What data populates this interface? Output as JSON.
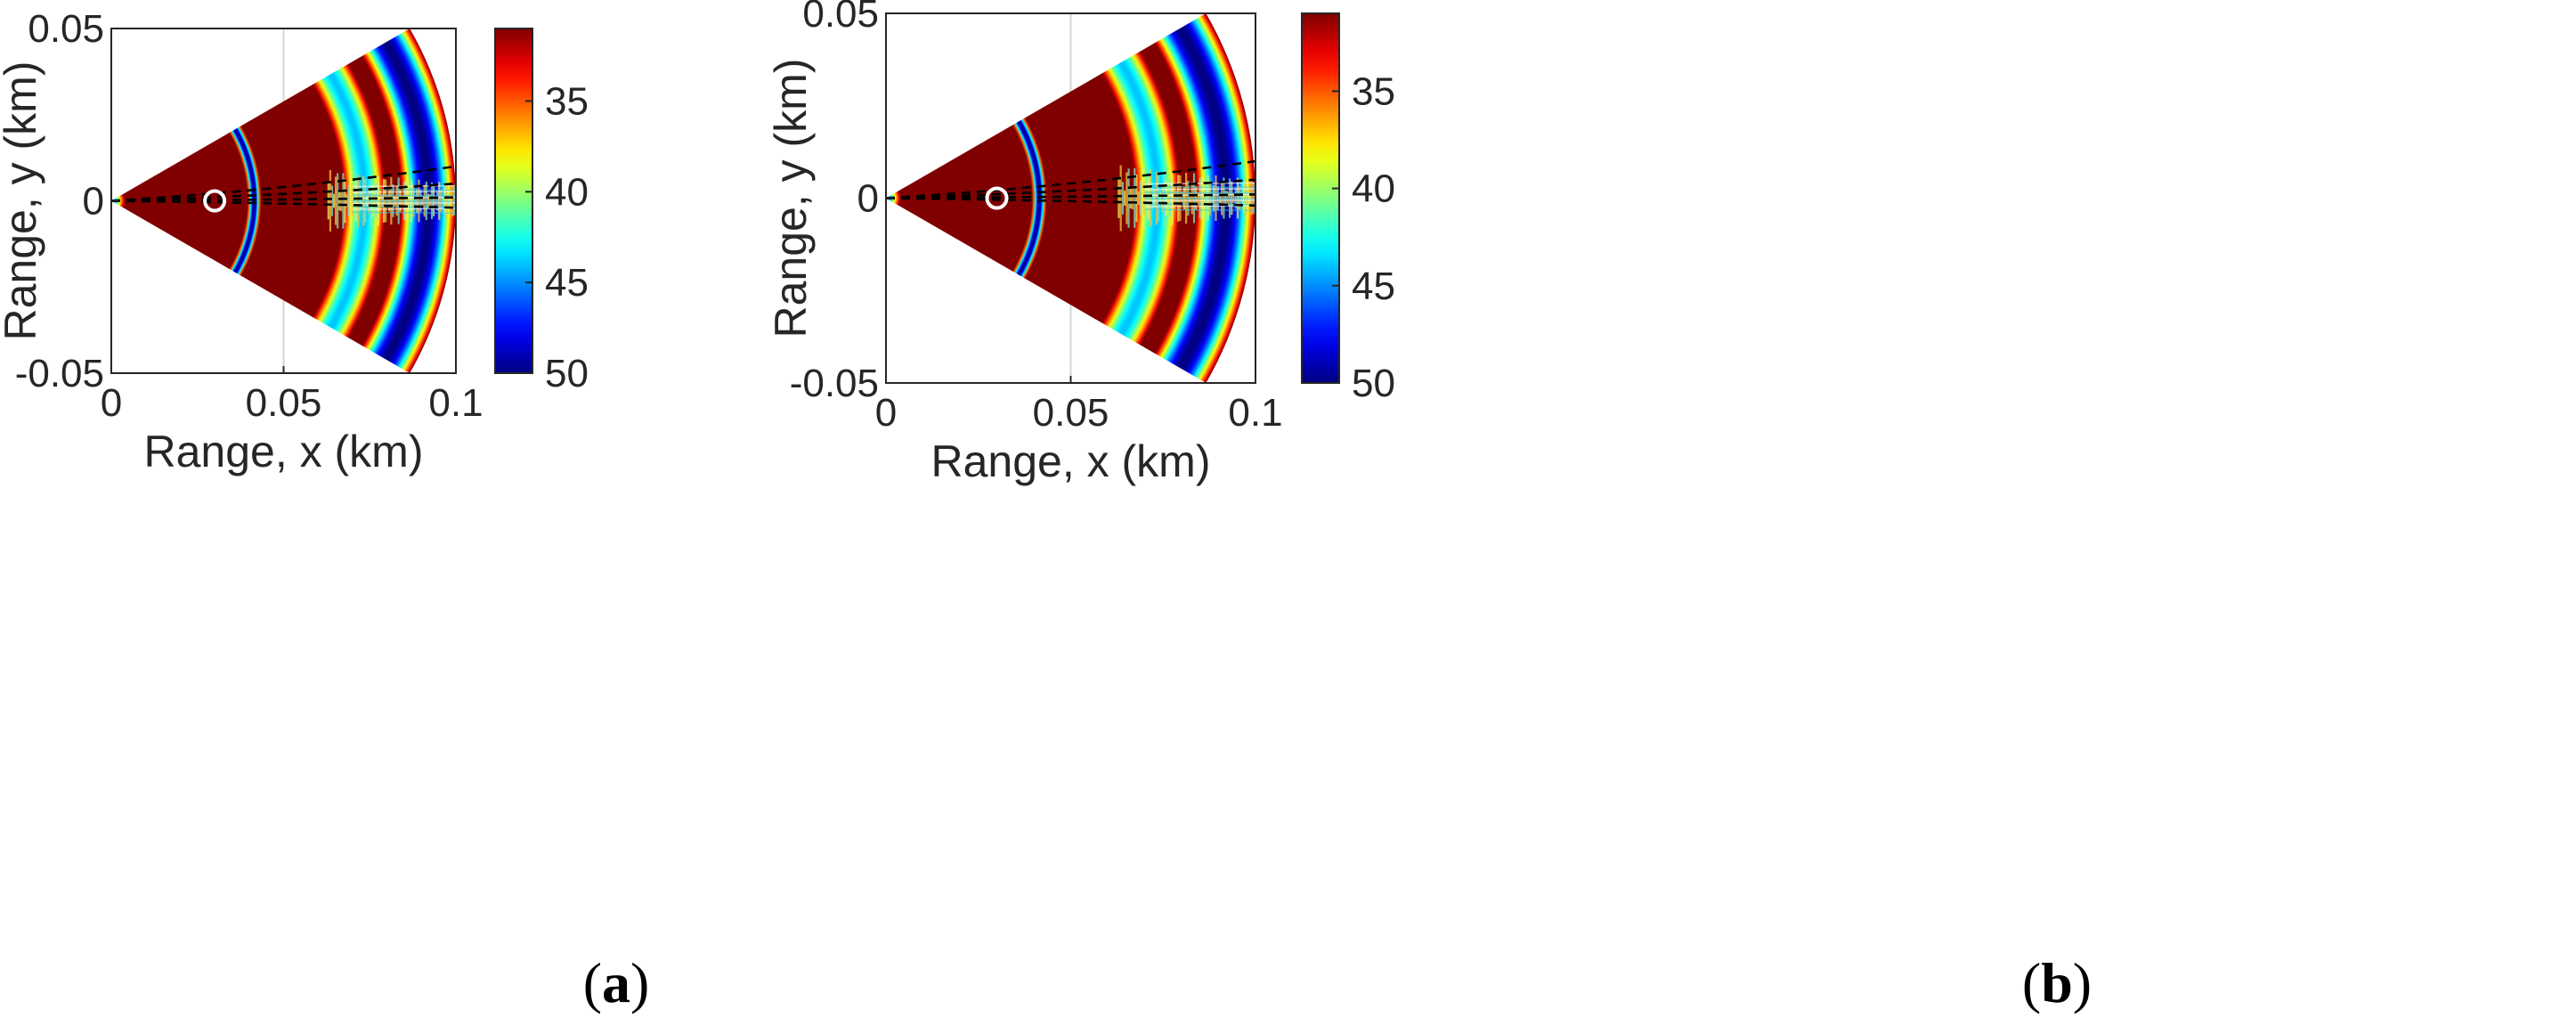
{
  "figure": {
    "panels": [
      {
        "label_open": "(",
        "label_letter": "a",
        "label_close": ")"
      },
      {
        "label_open": "(",
        "label_letter": "b",
        "label_close": ")"
      }
    ]
  },
  "chart_data": [
    {
      "type": "heatmap",
      "title": "",
      "xlabel": "Range, x (km)",
      "ylabel": "Range, y (km)",
      "xlim": [
        0,
        0.1
      ],
      "ylim": [
        -0.05,
        0.05
      ],
      "xticks": [
        "0",
        "0.05",
        "0.1"
      ],
      "yticks": [
        "0.05",
        "0",
        "-0.05"
      ],
      "xtick_values": [
        0,
        0.05,
        0.1
      ],
      "ytick_values": [
        0.05,
        0,
        -0.05
      ],
      "grid": true,
      "sector_half_angle_deg": 30,
      "max_range_km": 0.1,
      "colorbar": {
        "ticks": [
          "35",
          "40",
          "45",
          "50"
        ],
        "tick_values": [
          35,
          40,
          45,
          50
        ],
        "range": [
          31,
          50
        ],
        "reversed": true,
        "colormap": "jet"
      },
      "rings_km": [
        {
          "center": 0.0415,
          "width": 0.0035,
          "value": 50
        },
        {
          "center": 0.0735,
          "width": 0.012,
          "value": 44
        },
        {
          "center": 0.092,
          "width": 0.016,
          "value": 50
        }
      ],
      "background_value": 31,
      "source_marker": {
        "x": 0.03,
        "y": 0.0
      },
      "dashed_paths_end_y": [
        0.01,
        0.005,
        0.001,
        -0.002
      ],
      "colors": {
        "dashed": "#000000",
        "marker": "#ffffff"
      }
    },
    {
      "type": "heatmap",
      "title": "",
      "xlabel": "Range, x (km)",
      "ylabel": "Range, y (km)",
      "xlim": [
        0,
        0.1
      ],
      "ylim": [
        -0.05,
        0.05
      ],
      "xticks": [
        "0",
        "0.05",
        "0.1"
      ],
      "yticks": [
        "0.05",
        "0",
        "-0.05"
      ],
      "xtick_values": [
        0,
        0.05,
        0.1
      ],
      "ytick_values": [
        0.05,
        0,
        -0.05
      ],
      "grid": true,
      "sector_half_angle_deg": 30,
      "max_range_km": 0.1,
      "colorbar": {
        "ticks": [
          "35",
          "40",
          "45",
          "50"
        ],
        "tick_values": [
          35,
          40,
          45,
          50
        ],
        "range": [
          31,
          50
        ],
        "reversed": true,
        "colormap": "jet"
      },
      "rings_km": [
        {
          "center": 0.0415,
          "width": 0.0035,
          "value": 50
        },
        {
          "center": 0.0735,
          "width": 0.012,
          "value": 44
        },
        {
          "center": 0.092,
          "width": 0.016,
          "value": 50
        }
      ],
      "background_value": 31,
      "source_marker": {
        "x": 0.03,
        "y": 0.0
      },
      "dashed_paths_end_y": [
        0.01,
        0.005,
        0.001,
        -0.002
      ],
      "colors": {
        "dashed": "#000000",
        "marker": "#ffffff"
      }
    }
  ]
}
